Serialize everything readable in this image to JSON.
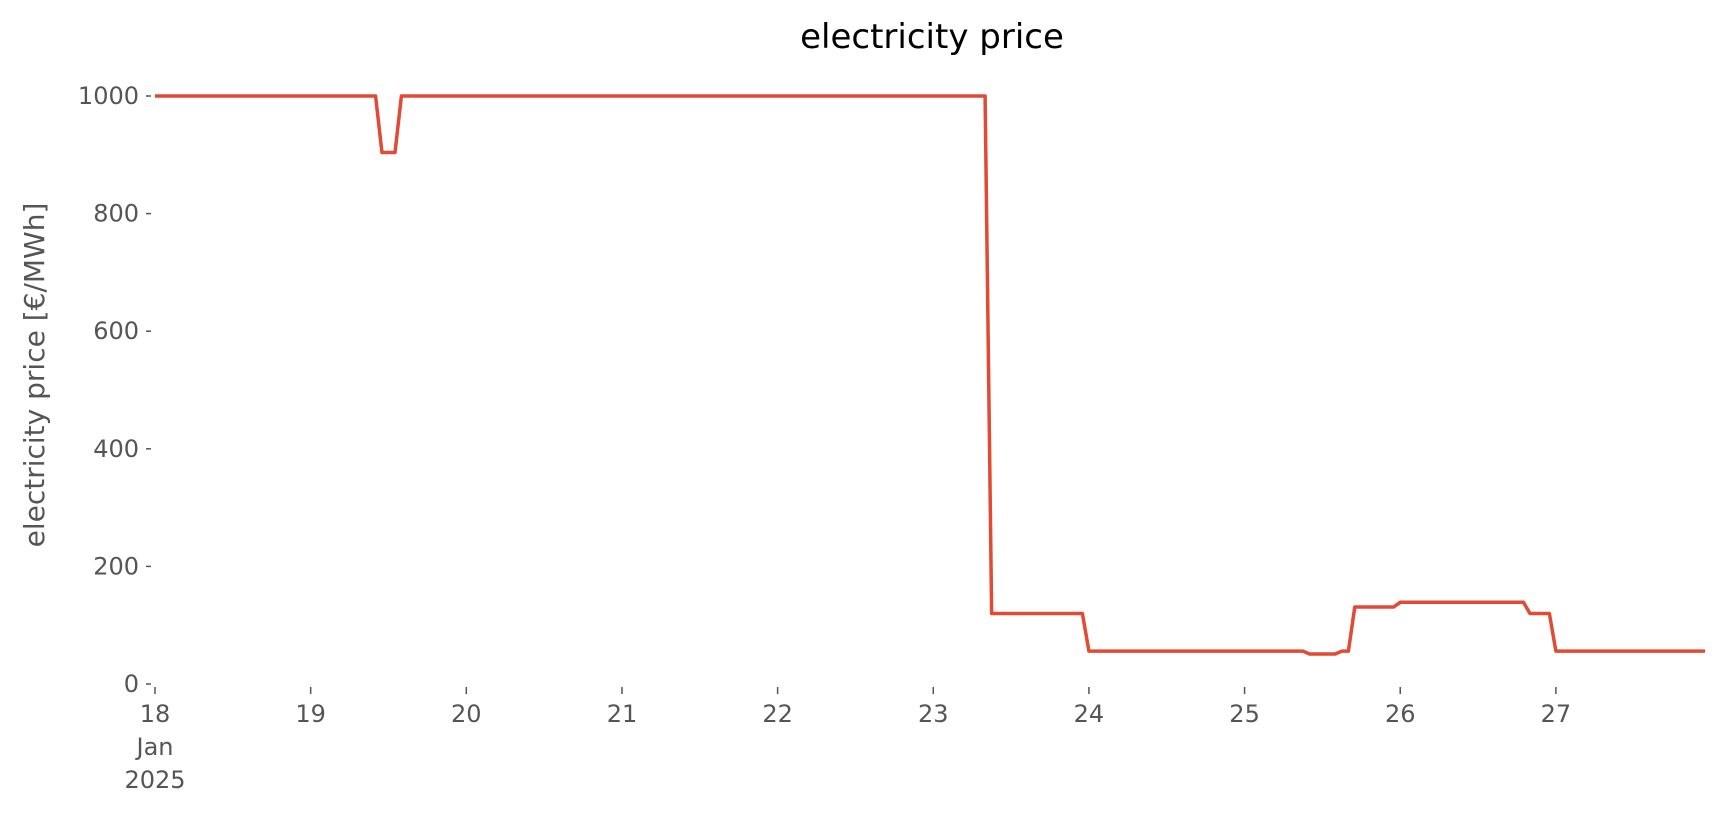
{
  "chart_data": {
    "type": "line",
    "title": "electricity price",
    "ylabel": "electricity price [€/MWh]",
    "x": [
      18,
      19.417,
      19.458,
      19.542,
      19.583,
      23.333,
      23.375,
      23.958,
      24,
      25.375,
      25.417,
      25.583,
      25.625,
      25.667,
      25.708,
      25.958,
      26,
      26.792,
      26.833,
      26.958,
      27,
      27.958
    ],
    "series": [
      {
        "name": "electricity price",
        "color": "#e24a33",
        "values": [
          1000,
          1000,
          904,
          904,
          1000,
          1000,
          120,
          120,
          56,
          56,
          51,
          51,
          56,
          56,
          131,
          131,
          139,
          139,
          120,
          120,
          56,
          56
        ]
      }
    ],
    "xlim": [
      18,
      27.958
    ],
    "ylim": [
      0,
      1000
    ],
    "xticks": [
      {
        "value": 18,
        "label": "18\nJan\n2025"
      },
      19,
      20,
      21,
      22,
      23,
      24,
      25,
      26,
      27
    ],
    "yticks": [
      0,
      200,
      400,
      600,
      800,
      1000
    ],
    "grid": false
  }
}
